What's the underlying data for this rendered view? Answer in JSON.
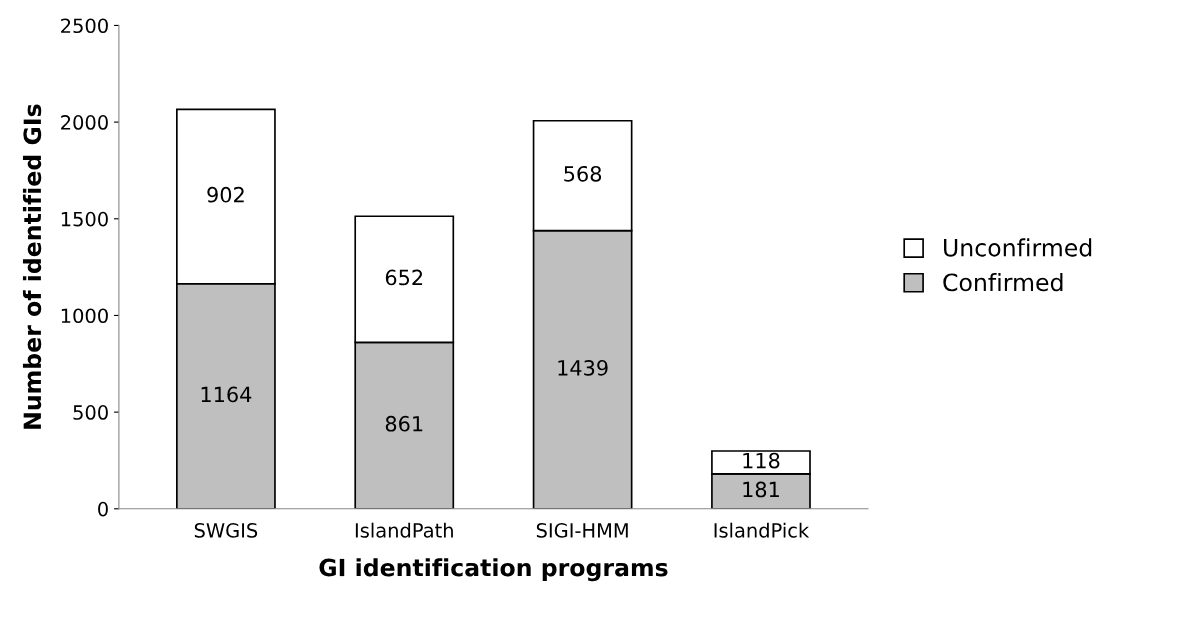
{
  "chart_data": {
    "type": "bar",
    "stacked": true,
    "xlabel": "GI identification programs",
    "ylabel": "Number of identified GIs",
    "categories": [
      "SWGIS",
      "IslandPath",
      "SIGI-HMM",
      "IslandPick"
    ],
    "series": [
      {
        "name": "Confirmed",
        "color": "#bfbfbf",
        "values": [
          1164,
          861,
          1439,
          181
        ]
      },
      {
        "name": "Unconfirmed",
        "color": "#ffffff",
        "values": [
          902,
          652,
          568,
          118
        ]
      }
    ],
    "ylim": [
      0,
      2500
    ],
    "yticks": [
      0,
      500,
      1000,
      1500,
      2000,
      2500
    ],
    "data_labels": true,
    "legend": "right",
    "grid": false
  }
}
